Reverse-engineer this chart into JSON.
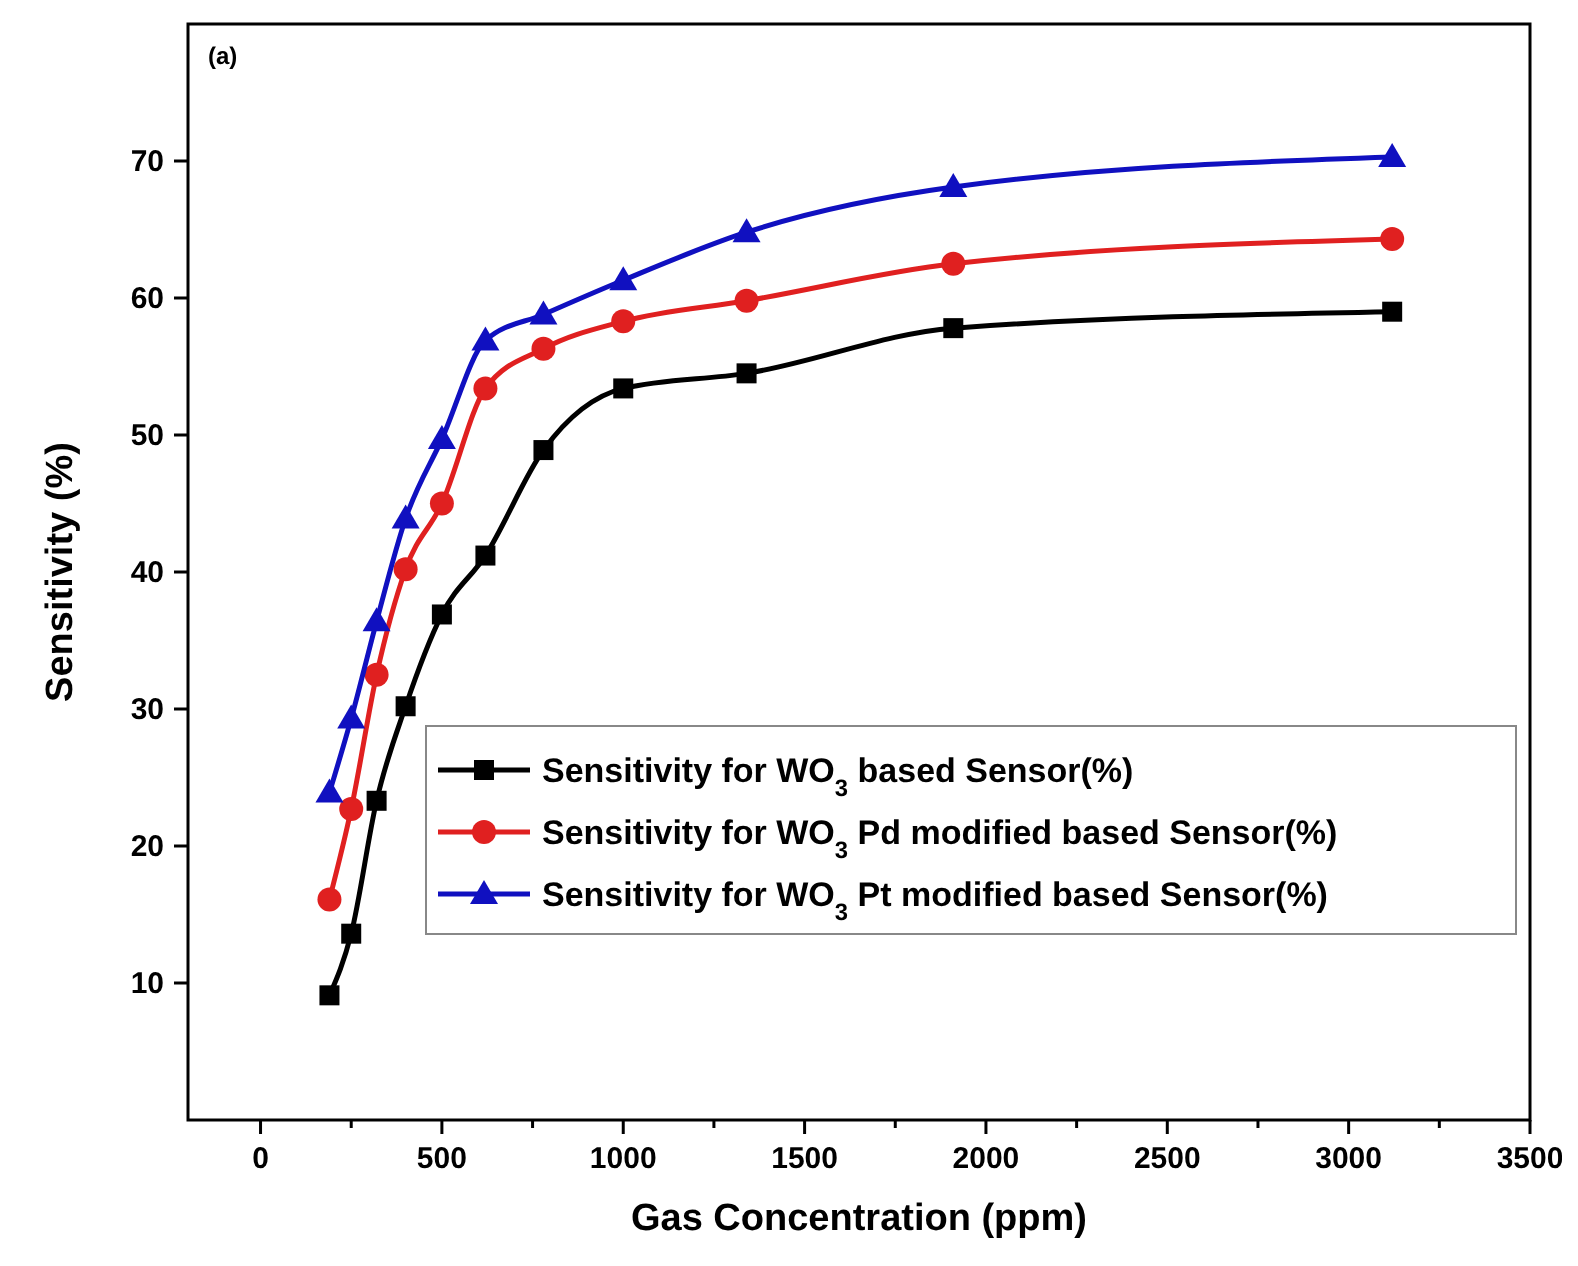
{
  "chart_data": {
    "type": "line",
    "xlabel": "Gas Concentration (ppm)",
    "ylabel": "Sensitivity (%)",
    "annotations": [
      "(a)"
    ],
    "x": [
      190,
      250,
      320,
      400,
      500,
      620,
      780,
      1000,
      1340,
      1910,
      3120
    ],
    "xlim": [
      -200,
      3500
    ],
    "xticks": [
      0,
      {
        "value": 250,
        "label": null
      },
      500,
      {
        "value": 750,
        "label": null
      },
      1000,
      {
        "value": 1250,
        "label": null
      },
      1500,
      {
        "value": 1750,
        "label": null
      },
      2000,
      {
        "value": 2250,
        "label": null
      },
      2500,
      {
        "value": 2750,
        "label": null
      },
      3000,
      {
        "value": 3250,
        "label": null
      },
      3500
    ],
    "ylim": [
      0,
      80
    ],
    "yticks": [
      10,
      20,
      30,
      40,
      50,
      60,
      70
    ],
    "legend": "right",
    "grid": false,
    "line_style": "solid",
    "series": [
      {
        "name": "Sensitivity for WO$_{3}$ based Sensor(%)",
        "color": "#000000",
        "marker": "square",
        "values": [
          9.1,
          13.6,
          23.3,
          30.2,
          36.9,
          41.2,
          48.9,
          53.4,
          54.5,
          57.8,
          59.0
        ]
      },
      {
        "name": "Sensitivity for WO$_{3}$ Pd modified based Sensor(%)",
        "color": "#e02020",
        "marker": "circle",
        "values": [
          16.1,
          22.7,
          32.5,
          40.2,
          45.0,
          53.4,
          56.3,
          58.3,
          59.8,
          62.5,
          64.3
        ]
      },
      {
        "name": "Sensitivity for WO$_{3}$ Pt modified based Sensor(%)",
        "color": "#1010c0",
        "marker": "triangle",
        "values": [
          23.9,
          29.3,
          36.4,
          43.9,
          49.7,
          56.9,
          58.8,
          61.3,
          64.8,
          68.1,
          70.3
        ]
      }
    ]
  }
}
